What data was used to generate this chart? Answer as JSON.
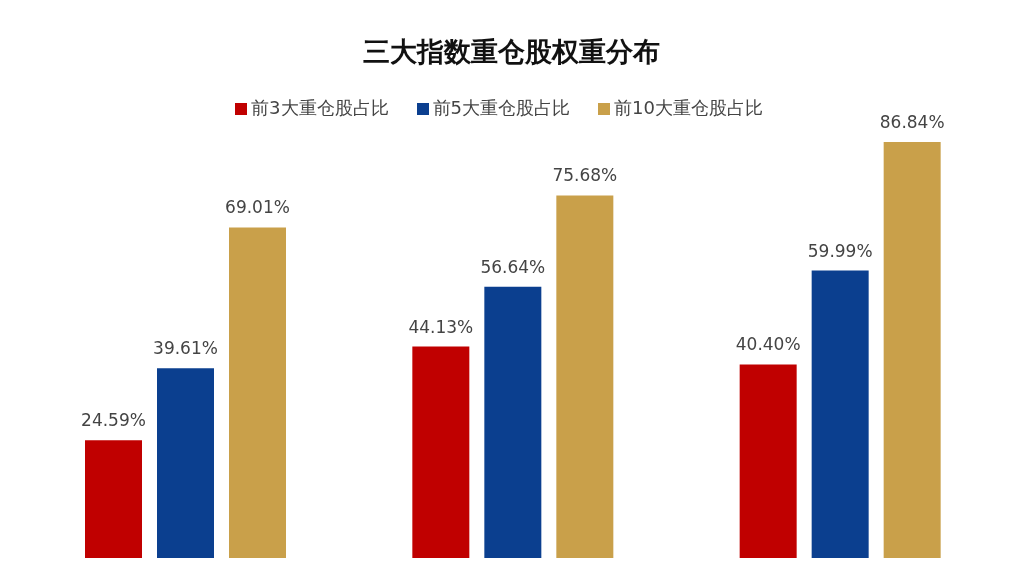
{
  "chart_data": {
    "type": "bar",
    "title": "三大指数重仓股权重分布",
    "categories": [
      null,
      null,
      null
    ],
    "series": [
      {
        "name": "前3大重仓股占比",
        "color": "#c00000",
        "values": [
          24.59,
          44.13,
          40.4
        ],
        "value_labels": [
          "24.59%",
          "44.13%",
          "40.40%"
        ]
      },
      {
        "name": "前5大重仓股占比",
        "color": "#0b3f8f",
        "values": [
          39.61,
          56.64,
          59.99
        ],
        "value_labels": [
          "39.61%",
          "56.64%",
          "59.99%"
        ]
      },
      {
        "name": "前10大重仓股占比",
        "color": "#c9a04a",
        "values": [
          69.01,
          75.68,
          86.84
        ],
        "value_labels": [
          "69.01%",
          "75.68%",
          "86.84%"
        ]
      }
    ],
    "legend": "top"
  }
}
